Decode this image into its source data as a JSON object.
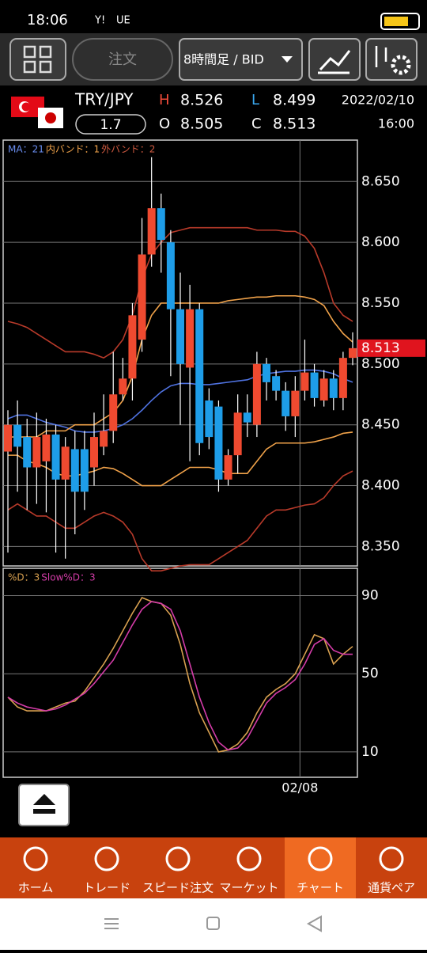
{
  "status_bar": {
    "time": "18:06",
    "icons": [
      "Y!",
      "UE"
    ]
  },
  "toolbar": {
    "order_button": "注文",
    "timeframe": "8時間足 / BID"
  },
  "quote": {
    "pair": "TRY/JPY",
    "lot": 1.7,
    "high_label": "H",
    "high": 8.526,
    "low_label": "L",
    "low": 8.499,
    "open_label": "O",
    "open": 8.505,
    "close_label": "C",
    "close": 8.513,
    "date": "2022/02/10",
    "time": "16:00"
  },
  "chart_data": [
    {
      "type": "candlestick",
      "legend": [
        "MA：21",
        "内バンド：1",
        "外バンド：2"
      ],
      "up_color": "#ef4a30",
      "down_color": "#1e9de8",
      "open": [
        8.428,
        8.45,
        8.44,
        8.415,
        8.42,
        8.442,
        8.405,
        8.43,
        8.43,
        8.415,
        8.432,
        8.445,
        8.475,
        8.488,
        8.52,
        8.59,
        8.628,
        8.6,
        8.545,
        8.497,
        8.545,
        8.47,
        8.465,
        8.405,
        8.425,
        8.46,
        8.45,
        8.5,
        8.49,
        8.478,
        8.457,
        8.478,
        8.493,
        8.47,
        8.488,
        8.472,
        8.505
      ],
      "high": [
        8.462,
        8.47,
        8.455,
        8.46,
        8.455,
        8.45,
        8.44,
        8.445,
        8.445,
        8.46,
        8.475,
        8.51,
        8.505,
        8.55,
        8.62,
        8.67,
        8.64,
        8.61,
        8.575,
        8.565,
        8.55,
        8.48,
        8.47,
        8.43,
        8.475,
        8.475,
        8.51,
        8.505,
        8.495,
        8.485,
        8.49,
        8.52,
        8.5,
        8.495,
        8.495,
        8.51,
        8.526
      ],
      "low": [
        8.345,
        8.395,
        8.38,
        8.385,
        8.378,
        8.345,
        8.34,
        8.36,
        8.38,
        8.4,
        8.425,
        8.435,
        8.47,
        8.47,
        8.51,
        8.58,
        8.575,
        8.49,
        8.45,
        8.42,
        8.425,
        8.43,
        8.395,
        8.4,
        8.41,
        8.44,
        8.44,
        8.47,
        8.47,
        8.445,
        8.44,
        8.47,
        8.465,
        8.465,
        8.462,
        8.462,
        8.499
      ],
      "close": [
        8.45,
        8.432,
        8.415,
        8.44,
        8.442,
        8.405,
        8.432,
        8.395,
        8.395,
        8.44,
        8.445,
        8.475,
        8.488,
        8.54,
        8.59,
        8.628,
        8.602,
        8.545,
        8.5,
        8.545,
        8.435,
        8.44,
        8.405,
        8.425,
        8.46,
        8.452,
        8.5,
        8.485,
        8.478,
        8.457,
        8.478,
        8.493,
        8.472,
        8.488,
        8.472,
        8.505,
        8.513
      ],
      "series": [
        {
          "name": "MA",
          "color": "#4f72e0",
          "values": [
            8.455,
            8.458,
            8.458,
            8.455,
            8.452,
            8.45,
            8.448,
            8.445,
            8.444,
            8.444,
            8.445,
            8.447,
            8.45,
            8.455,
            8.462,
            8.47,
            8.477,
            8.482,
            8.484,
            8.484,
            8.483,
            8.483,
            8.484,
            8.485,
            8.486,
            8.487,
            8.49,
            8.492,
            8.493,
            8.494,
            8.494,
            8.495,
            8.495,
            8.494,
            8.492,
            8.488,
            8.485
          ]
        },
        {
          "name": "内バンド+",
          "color": "#f0a24a",
          "values": [
            8.44,
            8.44,
            8.44,
            8.44,
            8.445,
            8.445,
            8.445,
            8.45,
            8.45,
            8.45,
            8.455,
            8.46,
            8.47,
            8.49,
            8.52,
            8.54,
            8.55,
            8.55,
            8.55,
            8.55,
            8.55,
            8.55,
            8.55,
            8.552,
            8.553,
            8.554,
            8.555,
            8.555,
            8.556,
            8.556,
            8.556,
            8.555,
            8.553,
            8.548,
            8.535,
            8.525,
            8.518
          ]
        },
        {
          "name": "内バンド-",
          "color": "#f0a24a",
          "values": [
            8.425,
            8.425,
            8.42,
            8.418,
            8.415,
            8.41,
            8.408,
            8.408,
            8.41,
            8.412,
            8.415,
            8.414,
            8.41,
            8.405,
            8.4,
            8.4,
            8.4,
            8.405,
            8.41,
            8.415,
            8.415,
            8.415,
            8.413,
            8.41,
            8.41,
            8.41,
            8.42,
            8.43,
            8.435,
            8.435,
            8.435,
            8.435,
            8.436,
            8.438,
            8.44,
            8.443,
            8.444
          ]
        },
        {
          "name": "外バンド+",
          "color": "#b83a2a",
          "values": [
            8.535,
            8.533,
            8.53,
            8.525,
            8.52,
            8.515,
            8.51,
            8.51,
            8.51,
            8.508,
            8.505,
            8.51,
            8.52,
            8.54,
            8.57,
            8.59,
            8.6,
            8.608,
            8.61,
            8.612,
            8.612,
            8.612,
            8.612,
            8.612,
            8.612,
            8.612,
            8.61,
            8.61,
            8.61,
            8.609,
            8.609,
            8.605,
            8.595,
            8.575,
            8.55,
            8.54,
            8.535
          ]
        },
        {
          "name": "外バンド-",
          "color": "#b83a2a",
          "values": [
            8.38,
            8.385,
            8.38,
            8.375,
            8.375,
            8.37,
            8.365,
            8.365,
            8.37,
            8.375,
            8.378,
            8.375,
            8.37,
            8.36,
            8.34,
            8.33,
            8.33,
            8.332,
            8.334,
            8.335,
            8.335,
            8.335,
            8.34,
            8.345,
            8.35,
            8.355,
            8.365,
            8.375,
            8.38,
            8.38,
            8.382,
            8.384,
            8.385,
            8.39,
            8.4,
            8.408,
            8.412
          ]
        }
      ],
      "ylim": [
        8.684,
        8.334
      ],
      "yticks": [
        {
          "value": 8.65,
          "label": "8.650"
        },
        {
          "value": 8.6,
          "label": "8.600"
        },
        {
          "value": 8.55,
          "label": "8.550"
        },
        {
          "value": 8.5,
          "label": "8.500"
        },
        {
          "value": 8.45,
          "label": "8.450"
        },
        {
          "value": 8.4,
          "label": "8.400"
        },
        {
          "value": 8.35,
          "label": "8.350"
        }
      ],
      "last_price": {
        "value": 8.513,
        "label": "8.513"
      },
      "xticks": [
        {
          "value": 30,
          "label": "02/08"
        }
      ],
      "grid": true
    },
    {
      "type": "line",
      "legend": [
        "%D：3",
        "Slow%D：3"
      ],
      "series": [
        {
          "name": "%D",
          "color": "#d8a050",
          "values": [
            38,
            33,
            31,
            31,
            31,
            33,
            35,
            36,
            41,
            48,
            55,
            63,
            72,
            81,
            89,
            87,
            86,
            80,
            65,
            45,
            30,
            20,
            10,
            11,
            14,
            20,
            30,
            38,
            42,
            45,
            50,
            60,
            70,
            68,
            55,
            60,
            64
          ]
        },
        {
          "name": "Slow%D",
          "color": "#d43ca8",
          "values": [
            38,
            35,
            33,
            32,
            31,
            32,
            34,
            37,
            40,
            45,
            51,
            57,
            66,
            75,
            83,
            87,
            86,
            83,
            72,
            55,
            38,
            25,
            15,
            11,
            12,
            17,
            26,
            35,
            40,
            43,
            47,
            55,
            65,
            68,
            62,
            60,
            60
          ]
        }
      ],
      "ylim": [
        104,
        -3
      ],
      "yticks": [
        90,
        50,
        10
      ],
      "xticks": [
        {
          "value": 30,
          "label": "02/08"
        }
      ],
      "grid": true
    }
  ],
  "nav": [
    "ホーム",
    "トレード",
    "スピード注文",
    "マーケット",
    "チャート",
    "通貨ペア"
  ],
  "active_nav": 4
}
